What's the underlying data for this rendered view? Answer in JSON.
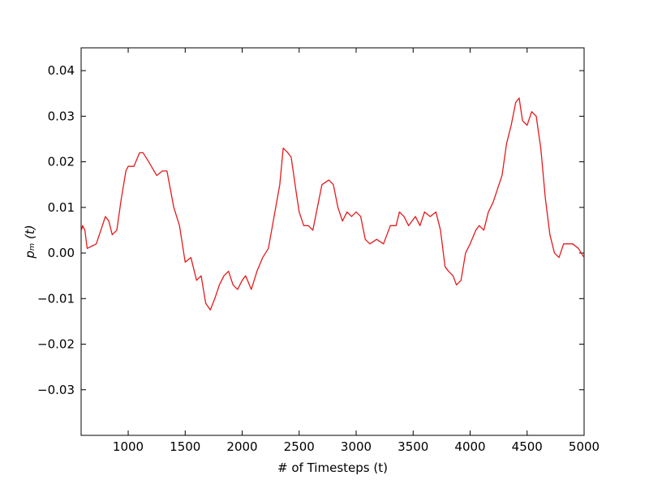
{
  "chart_data": {
    "type": "line",
    "xlabel": "# of Timesteps (t)",
    "ylabel": "pₘ (t)",
    "x": [
      590,
      600,
      620,
      640,
      680,
      720,
      760,
      800,
      830,
      860,
      900,
      940,
      980,
      1000,
      1050,
      1100,
      1130,
      1180,
      1250,
      1300,
      1340,
      1400,
      1450,
      1500,
      1550,
      1600,
      1640,
      1680,
      1720,
      1760,
      1800,
      1840,
      1880,
      1920,
      1960,
      2000,
      2030,
      2080,
      2130,
      2180,
      2230,
      2280,
      2330,
      2360,
      2400,
      2430,
      2470,
      2500,
      2540,
      2580,
      2620,
      2660,
      2700,
      2760,
      2800,
      2840,
      2880,
      2920,
      2960,
      3000,
      3040,
      3080,
      3120,
      3180,
      3240,
      3300,
      3350,
      3380,
      3420,
      3460,
      3520,
      3560,
      3600,
      3650,
      3700,
      3740,
      3780,
      3810,
      3850,
      3880,
      3920,
      3960,
      4000,
      4050,
      4080,
      4120,
      4160,
      4200,
      4240,
      4280,
      4320,
      4360,
      4400,
      4430,
      4460,
      4500,
      4540,
      4580,
      4620,
      4660,
      4700,
      4740,
      4780,
      4820,
      4860,
      4900,
      4950,
      5000
    ],
    "series": [
      {
        "name": "pₘ (t)",
        "color": "#e41a1c",
        "values": [
          0.005,
          0.006,
          0.005,
          0.001,
          0.0015,
          0.002,
          0.005,
          0.008,
          0.007,
          0.004,
          0.005,
          0.012,
          0.018,
          0.019,
          0.019,
          0.022,
          0.022,
          0.02,
          0.017,
          0.018,
          0.018,
          0.01,
          0.006,
          -0.002,
          -0.001,
          -0.006,
          -0.005,
          -0.011,
          -0.0125,
          -0.01,
          -0.007,
          -0.005,
          -0.004,
          -0.007,
          -0.008,
          -0.006,
          -0.005,
          -0.008,
          -0.004,
          -0.001,
          0.001,
          0.008,
          0.015,
          0.023,
          0.022,
          0.021,
          0.014,
          0.009,
          0.006,
          0.006,
          0.005,
          0.01,
          0.015,
          0.016,
          0.015,
          0.01,
          0.007,
          0.009,
          0.008,
          0.009,
          0.008,
          0.003,
          0.002,
          0.003,
          0.002,
          0.006,
          0.006,
          0.009,
          0.008,
          0.006,
          0.008,
          0.006,
          0.009,
          0.008,
          0.009,
          0.005,
          -0.003,
          -0.004,
          -0.005,
          -0.007,
          -0.006,
          0.0,
          0.002,
          0.005,
          0.006,
          0.005,
          0.009,
          0.011,
          0.014,
          0.017,
          0.024,
          0.028,
          0.033,
          0.034,
          0.029,
          0.028,
          0.031,
          0.03,
          0.023,
          0.012,
          0.004,
          0.0,
          -0.001,
          0.002,
          0.002,
          0.002,
          0.001,
          -0.001
        ]
      }
    ],
    "xlim": [
      587,
      5000
    ],
    "xticks": [
      1000,
      1500,
      2000,
      2500,
      3000,
      3500,
      4000,
      4500,
      5000
    ],
    "ylim": [
      -0.04,
      0.045
    ],
    "yticks": [
      {
        "value": -0.03,
        "label": "−0.03"
      },
      {
        "value": -0.02,
        "label": "−0.02"
      },
      {
        "value": -0.01,
        "label": "−0.01"
      },
      {
        "value": 0,
        "label": "0.00"
      },
      {
        "value": 0.01,
        "label": "0.01"
      },
      {
        "value": 0.02,
        "label": "0.02"
      },
      {
        "value": 0.03,
        "label": "0.03"
      },
      {
        "value": 0.04,
        "label": "0.04"
      }
    ]
  }
}
